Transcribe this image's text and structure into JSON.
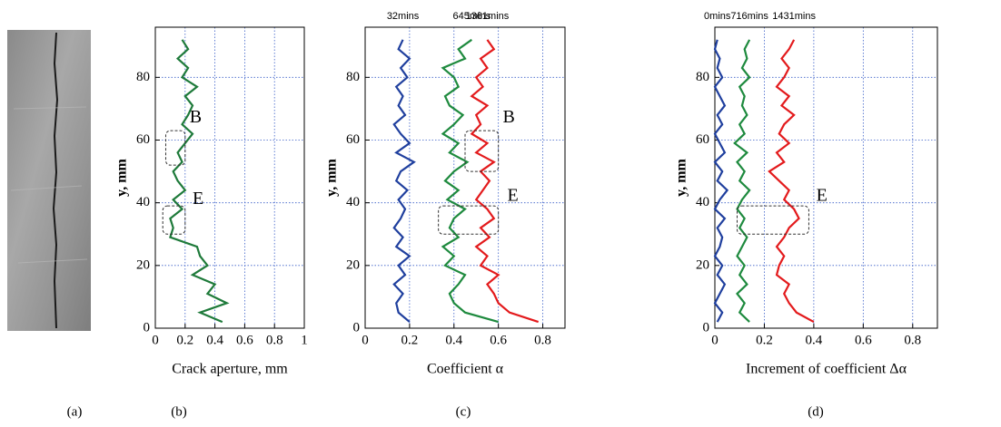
{
  "image_panel": {
    "label": "(a)"
  },
  "chart_data": [
    {
      "type": "line",
      "panel_label": "(b)",
      "x_label": "Crack aperture, mm",
      "y_label": "y, mm",
      "y": [
        2,
        5,
        8,
        11,
        14,
        17,
        20,
        23,
        26,
        29,
        32,
        35,
        38,
        41,
        44,
        47,
        50,
        53,
        56,
        59,
        62,
        65,
        68,
        71,
        74,
        77,
        80,
        83,
        86,
        89,
        92
      ],
      "series": [
        {
          "color": "#1e7a3a",
          "values": [
            0.45,
            0.3,
            0.48,
            0.35,
            0.4,
            0.25,
            0.35,
            0.3,
            0.28,
            0.1,
            0.12,
            0.1,
            0.18,
            0.12,
            0.2,
            0.15,
            0.12,
            0.18,
            0.15,
            0.2,
            0.25,
            0.18,
            0.22,
            0.25,
            0.2,
            0.28,
            0.18,
            0.22,
            0.15,
            0.22,
            0.18
          ]
        }
      ],
      "xlim": [
        0,
        1
      ],
      "xticks": [
        0,
        0.2,
        0.4,
        0.6,
        0.8,
        1
      ],
      "ylim": [
        0,
        96
      ],
      "yticks": [
        0,
        20,
        40,
        60,
        80
      ],
      "grid": true,
      "annotations": [
        {
          "text": "B"
        },
        {
          "text": "E"
        }
      ]
    },
    {
      "type": "line",
      "panel_label": "(c)",
      "x_label": "Coefficient α",
      "y_label": "y, mm",
      "y": [
        2,
        5,
        8,
        11,
        14,
        17,
        20,
        23,
        26,
        29,
        32,
        35,
        38,
        41,
        44,
        47,
        50,
        53,
        56,
        59,
        62,
        65,
        68,
        71,
        74,
        77,
        80,
        83,
        86,
        89,
        92
      ],
      "series": [
        {
          "name": "32mins",
          "color": "#1f3f9e",
          "values": [
            0.2,
            0.15,
            0.14,
            0.17,
            0.13,
            0.18,
            0.15,
            0.2,
            0.14,
            0.17,
            0.13,
            0.16,
            0.18,
            0.15,
            0.19,
            0.14,
            0.16,
            0.22,
            0.14,
            0.2,
            0.16,
            0.13,
            0.18,
            0.15,
            0.17,
            0.14,
            0.19,
            0.16,
            0.2,
            0.15,
            0.17
          ]
        },
        {
          "name": "645mins",
          "color": "#1e8a3e",
          "values": [
            0.6,
            0.45,
            0.4,
            0.38,
            0.42,
            0.45,
            0.36,
            0.4,
            0.35,
            0.42,
            0.38,
            0.4,
            0.45,
            0.37,
            0.42,
            0.36,
            0.4,
            0.46,
            0.38,
            0.42,
            0.35,
            0.4,
            0.44,
            0.38,
            0.36,
            0.42,
            0.4,
            0.35,
            0.45,
            0.42,
            0.48
          ]
        },
        {
          "name": "1361mins",
          "color": "#e31a1c",
          "values": [
            0.78,
            0.65,
            0.6,
            0.58,
            0.55,
            0.6,
            0.52,
            0.55,
            0.5,
            0.56,
            0.52,
            0.58,
            0.55,
            0.5,
            0.53,
            0.56,
            0.52,
            0.58,
            0.5,
            0.55,
            0.48,
            0.52,
            0.5,
            0.55,
            0.48,
            0.53,
            0.5,
            0.55,
            0.52,
            0.58,
            0.55
          ]
        }
      ],
      "xlim": [
        0,
        0.9
      ],
      "xticks": [
        0,
        0.2,
        0.4,
        0.6,
        0.8
      ],
      "ylim": [
        0,
        96
      ],
      "yticks": [
        0,
        20,
        40,
        60,
        80
      ],
      "grid": true,
      "annotations": [
        {
          "text": "B"
        },
        {
          "text": "E"
        }
      ]
    },
    {
      "type": "line",
      "panel_label": "(d)",
      "x_label": "Increment of coefficient Δα",
      "y_label": "y, mm",
      "y": [
        2,
        5,
        8,
        11,
        14,
        17,
        20,
        23,
        26,
        29,
        32,
        35,
        38,
        41,
        44,
        47,
        50,
        53,
        56,
        59,
        62,
        65,
        68,
        71,
        74,
        77,
        80,
        83,
        86,
        89,
        92
      ],
      "series": [
        {
          "name": "0mins",
          "color": "#1f3f9e",
          "values": [
            0.01,
            0.03,
            0.0,
            0.02,
            0.04,
            0.01,
            0.03,
            0.0,
            0.02,
            0.03,
            0.01,
            0.04,
            0.0,
            0.02,
            0.05,
            0.01,
            0.03,
            0.0,
            0.04,
            0.02,
            0.0,
            0.03,
            0.01,
            0.04,
            0.02,
            0.0,
            0.03,
            0.01,
            0.02,
            0.0,
            0.01
          ]
        },
        {
          "name": "716mins",
          "color": "#1e8a3e",
          "values": [
            0.14,
            0.1,
            0.12,
            0.09,
            0.13,
            0.1,
            0.12,
            0.09,
            0.11,
            0.13,
            0.1,
            0.12,
            0.09,
            0.11,
            0.14,
            0.1,
            0.12,
            0.09,
            0.13,
            0.08,
            0.12,
            0.1,
            0.13,
            0.11,
            0.12,
            0.1,
            0.14,
            0.11,
            0.13,
            0.12,
            0.14
          ]
        },
        {
          "name": "1431mins",
          "color": "#e31a1c",
          "values": [
            0.4,
            0.33,
            0.3,
            0.28,
            0.3,
            0.25,
            0.26,
            0.28,
            0.25,
            0.28,
            0.3,
            0.34,
            0.32,
            0.28,
            0.3,
            0.26,
            0.22,
            0.28,
            0.25,
            0.3,
            0.26,
            0.28,
            0.32,
            0.27,
            0.3,
            0.25,
            0.28,
            0.3,
            0.27,
            0.3,
            0.32
          ]
        }
      ],
      "xlim": [
        0,
        0.9
      ],
      "xticks": [
        0,
        0.2,
        0.4,
        0.6,
        0.8
      ],
      "ylim": [
        0,
        96
      ],
      "yticks": [
        0,
        20,
        40,
        60,
        80
      ],
      "grid": true,
      "annotations": [
        {
          "text": "E"
        }
      ]
    }
  ]
}
